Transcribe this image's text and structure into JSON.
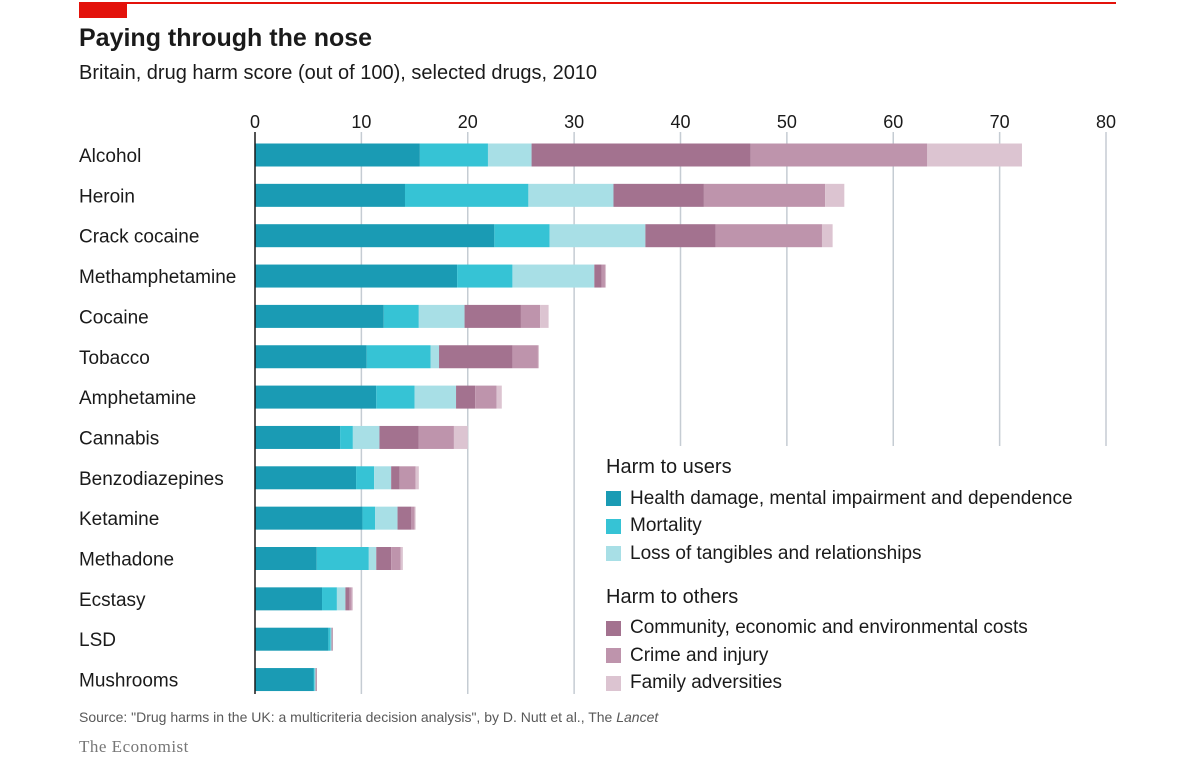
{
  "header": {
    "title": "Paying through the nose",
    "subtitle": "Britain, drug harm score (out of 100), selected drugs, 2010"
  },
  "footer": {
    "source_prefix": "Source: \"Drug harms in the UK: a multicriteria decision analysis\", by D. Nutt et al., The ",
    "source_italic": "Lancet",
    "brand": "The Economist"
  },
  "legend": {
    "group1_title": "Harm to users",
    "group2_title": "Harm to others"
  },
  "colors": {
    "brand_red": "#e3120b",
    "health": "#1a9bb4",
    "mortality": "#36c3d5",
    "tangibles": "#a8dfe6",
    "community": "#a3728f",
    "crime": "#be94ac",
    "family": "#dcc4d1",
    "grid": "#c5ccd3"
  },
  "chart_data": {
    "type": "bar",
    "orientation": "horizontal",
    "stacked": true,
    "title": "Paying through the nose",
    "subtitle": "Britain, drug harm score (out of 100), selected drugs, 2010",
    "xlim": [
      0,
      80
    ],
    "xticks": [
      0,
      10,
      20,
      30,
      40,
      50,
      60,
      70,
      80
    ],
    "grid": "vertical",
    "legend_position": "bottom-right",
    "categories": [
      "Alcohol",
      "Heroin",
      "Crack cocaine",
      "Methamphetamine",
      "Cocaine",
      "Tobacco",
      "Amphetamine",
      "Cannabis",
      "Benzodiazepines",
      "Ketamine",
      "Methadone",
      "Ecstasy",
      "LSD",
      "Mushrooms"
    ],
    "series": [
      {
        "name": "Health damage, mental impairment and dependence",
        "group": "Harm to users",
        "color": "#1a9bb4",
        "values": [
          15.5,
          14.1,
          22.5,
          19.0,
          12.1,
          10.5,
          11.4,
          8.0,
          9.5,
          10.1,
          5.8,
          6.3,
          6.9,
          5.5
        ]
      },
      {
        "name": "Mortality",
        "group": "Harm to users",
        "color": "#36c3d5",
        "values": [
          6.4,
          11.6,
          5.2,
          5.2,
          3.3,
          6.0,
          3.6,
          1.2,
          1.7,
          1.2,
          4.9,
          1.4,
          0.2,
          0.1
        ]
      },
      {
        "name": "Loss of tangibles and relationships",
        "group": "Harm to users",
        "color": "#a8dfe6",
        "values": [
          4.1,
          8.0,
          9.0,
          7.7,
          4.3,
          0.8,
          3.9,
          2.5,
          1.6,
          2.1,
          0.7,
          0.8,
          0.1,
          0.1
        ]
      },
      {
        "name": "Community, economic and environmental costs",
        "group": "Harm to others",
        "color": "#a3728f",
        "values": [
          20.6,
          8.5,
          6.6,
          0.7,
          5.3,
          6.9,
          1.8,
          3.7,
          0.8,
          1.3,
          1.4,
          0.4,
          0.1,
          0.1
        ]
      },
      {
        "name": "Crime and injury",
        "group": "Harm to others",
        "color": "#be94ac",
        "values": [
          16.6,
          11.4,
          10.0,
          0.3,
          1.8,
          2.4,
          2.0,
          3.3,
          1.5,
          0.3,
          0.9,
          0.2,
          0.0,
          0.0
        ]
      },
      {
        "name": "Family adversities",
        "group": "Harm to others",
        "color": "#dcc4d1",
        "values": [
          8.9,
          1.8,
          1.0,
          0.1,
          0.8,
          0.1,
          0.5,
          1.3,
          0.3,
          0.1,
          0.2,
          0.1,
          0.0,
          0.0
        ]
      }
    ]
  }
}
